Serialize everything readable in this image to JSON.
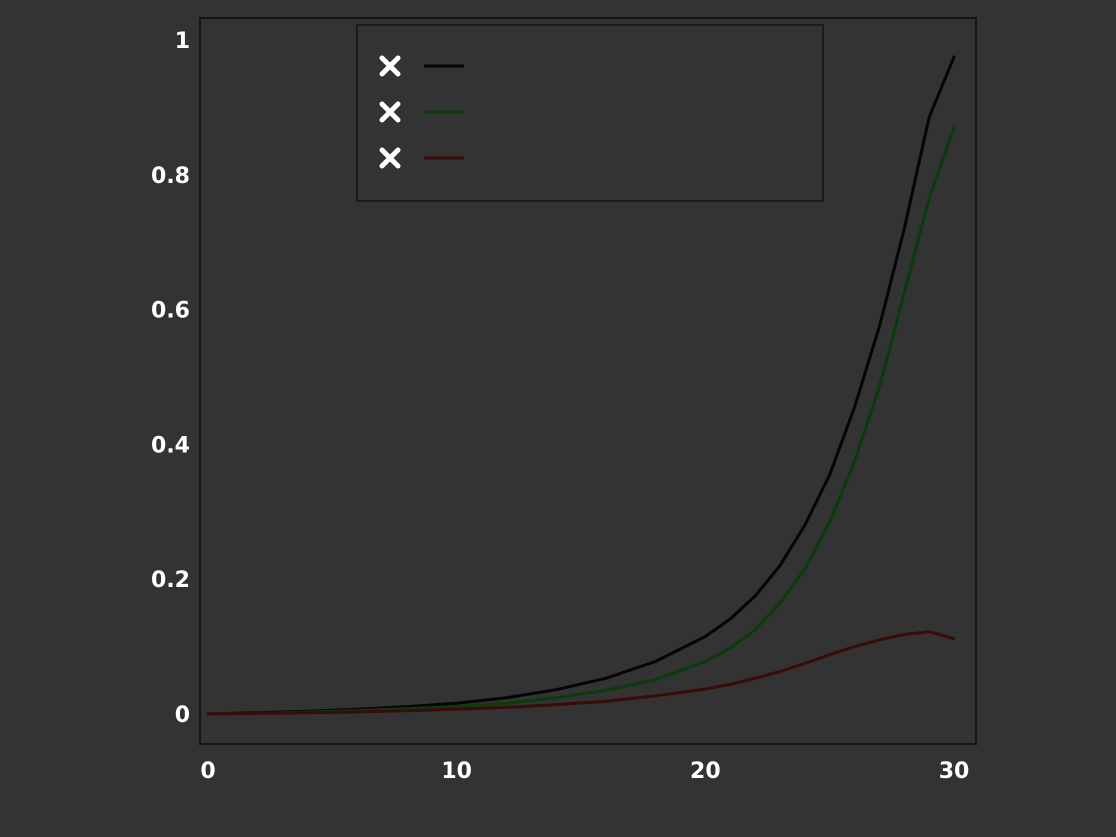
{
  "chart_data": {
    "type": "line",
    "title": "",
    "xlabel": "",
    "ylabel": "",
    "xlim": [
      0,
      30
    ],
    "ylim": [
      0,
      1
    ],
    "x_ticks": [
      0,
      10,
      20,
      30
    ],
    "y_ticks": [
      0,
      0.2,
      0.4,
      0.6,
      0.8,
      1.0
    ],
    "x": [
      0,
      2,
      4,
      6,
      8,
      10,
      12,
      14,
      16,
      18,
      20,
      21,
      22,
      23,
      24,
      25,
      26,
      27,
      28,
      29,
      30
    ],
    "series": [
      {
        "name": "",
        "color": "#050505",
        "values": [
          0.0,
          0.002,
          0.004,
          0.007,
          0.011,
          0.016,
          0.024,
          0.036,
          0.053,
          0.078,
          0.115,
          0.141,
          0.175,
          0.22,
          0.28,
          0.355,
          0.455,
          0.575,
          0.72,
          0.885,
          0.975
        ]
      },
      {
        "name": "",
        "color": "#0b3a0b",
        "values": [
          0.0,
          0.001,
          0.003,
          0.005,
          0.008,
          0.011,
          0.016,
          0.024,
          0.035,
          0.051,
          0.078,
          0.098,
          0.125,
          0.165,
          0.215,
          0.285,
          0.375,
          0.485,
          0.625,
          0.765,
          0.87
        ]
      },
      {
        "name": "",
        "color": "#3a0b0b",
        "values": [
          0.0,
          0.001,
          0.002,
          0.003,
          0.005,
          0.007,
          0.01,
          0.014,
          0.019,
          0.027,
          0.037,
          0.044,
          0.053,
          0.063,
          0.075,
          0.088,
          0.1,
          0.11,
          0.118,
          0.122,
          0.112
        ]
      }
    ],
    "legend_position": "top-center",
    "grid": false
  }
}
